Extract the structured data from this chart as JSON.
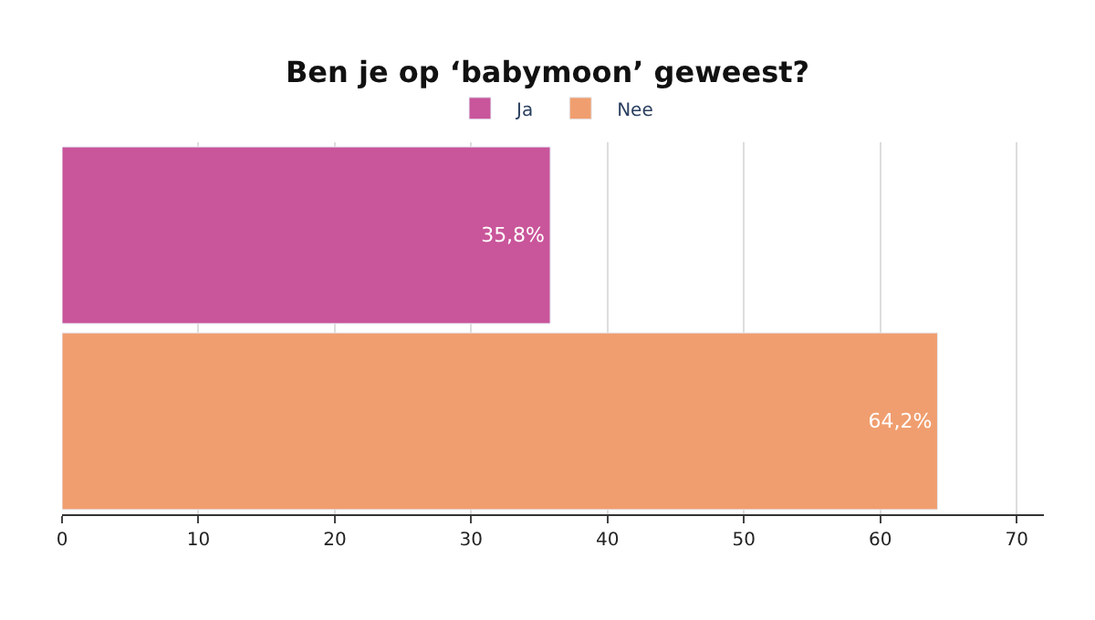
{
  "chart_data": {
    "type": "bar",
    "orientation": "horizontal",
    "title": "Ben je op ‘babymoon’ geweest?",
    "categories": [
      null,
      null
    ],
    "series": [
      {
        "name": "Ja",
        "color": "#c9559a",
        "values": [
          35.8,
          null
        ],
        "value_labels": [
          "35,8%",
          null
        ]
      },
      {
        "name": "Nee",
        "color": "#f09e6f",
        "values": [
          null,
          64.2
        ],
        "value_labels": [
          null,
          "64,2%"
        ]
      }
    ],
    "xlim": [
      0,
      72
    ],
    "xticks": [
      0,
      10,
      20,
      30,
      40,
      50,
      60,
      70
    ],
    "grid": "x",
    "legend": "top"
  }
}
